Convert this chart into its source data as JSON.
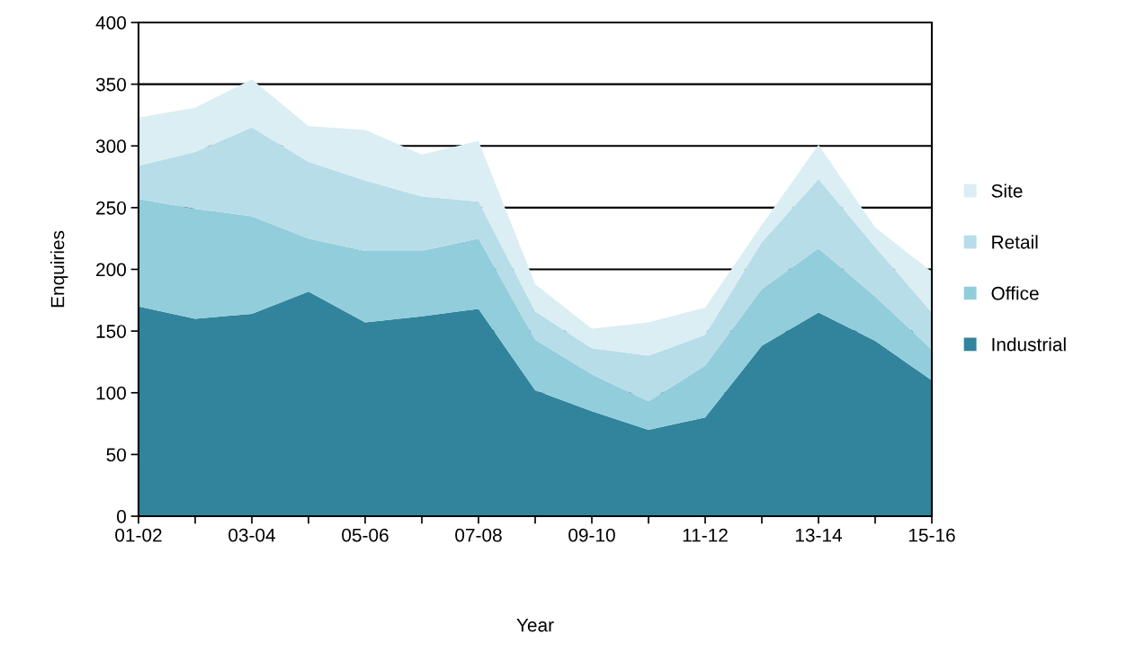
{
  "chart_data": {
    "type": "area",
    "stacked": true,
    "xlabel": "Year",
    "ylabel": "Enquiries",
    "categories": [
      "01-02",
      null,
      "03-04",
      null,
      "05-06",
      null,
      "07-08",
      null,
      "09-10",
      null,
      "11-12",
      null,
      "13-14",
      null,
      "15-16"
    ],
    "series": [
      {
        "name": "Industrial",
        "color": "#31849b",
        "values": [
          170,
          160,
          164,
          182,
          157,
          162,
          168,
          102,
          85,
          70,
          80,
          138,
          165,
          142,
          110
        ]
      },
      {
        "name": "Office",
        "color": "#92cddc",
        "values": [
          87,
          89,
          79,
          43,
          58,
          53,
          57,
          41,
          30,
          23,
          42,
          46,
          52,
          36,
          25
        ]
      },
      {
        "name": "Retail",
        "color": "#b7dde8",
        "values": [
          27,
          46,
          72,
          62,
          57,
          44,
          30,
          23,
          21,
          37,
          25,
          38,
          56,
          40,
          30
        ]
      },
      {
        "name": "Site",
        "color": "#daeef3",
        "values": [
          39,
          36,
          39,
          29,
          41,
          34,
          49,
          22,
          16,
          27,
          22,
          14,
          28,
          16,
          33
        ]
      }
    ],
    "ylim": [
      0,
      400
    ],
    "yticks": [
      0,
      50,
      100,
      150,
      200,
      250,
      300,
      350,
      400
    ],
    "grid": "y",
    "legend": "right"
  }
}
